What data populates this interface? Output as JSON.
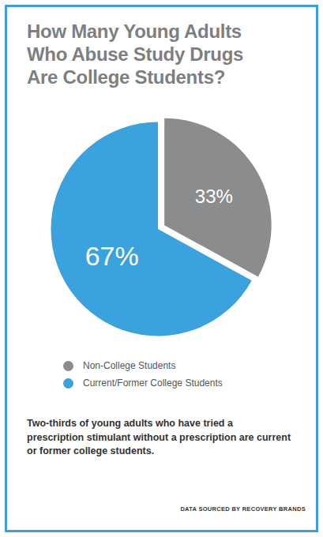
{
  "chart_data": {
    "type": "pie",
    "title": "How Many Young Adults Who Abuse Study Drugs Are College Students?",
    "categories": [
      "Non-College Students",
      "Current/Former College Students"
    ],
    "values": [
      33,
      67
    ],
    "value_labels": [
      "33%",
      "67%"
    ],
    "colors": [
      "#8a8c8e",
      "#3aa2dd"
    ],
    "data_labels": true,
    "annotations": [
      "Two-thirds of young adults who have tried a prescription stimulant without a prescription are current or former college students.",
      "DATA SOURCED BY RECOVERY BRANDS"
    ]
  }
}
